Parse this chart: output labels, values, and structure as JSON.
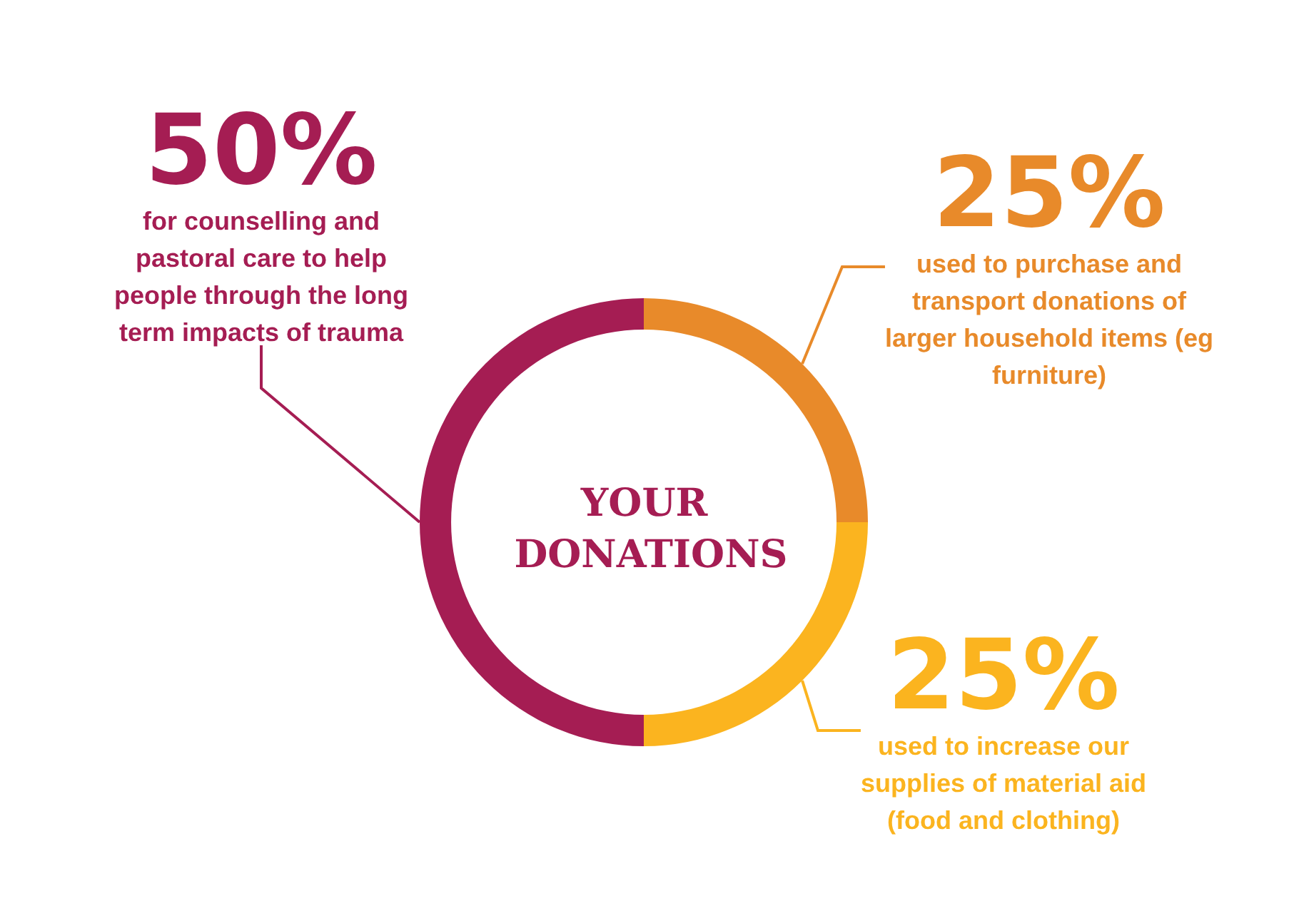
{
  "chart_data": {
    "type": "donut",
    "title": "YOUR DONATIONS",
    "categories": [
      "used to purchase and transport donations of larger household items (eg furniture)",
      "used to increase our supplies of material aid (food and clothing)",
      "for counselling and pastoral care to help people through the long term impacts of trauma"
    ],
    "values": [
      25,
      25,
      50
    ],
    "value_labels": [
      "25%",
      "25%",
      "50%"
    ],
    "colors": [
      "#e88a2a",
      "#fbb41f",
      "#a51d53"
    ]
  }
}
